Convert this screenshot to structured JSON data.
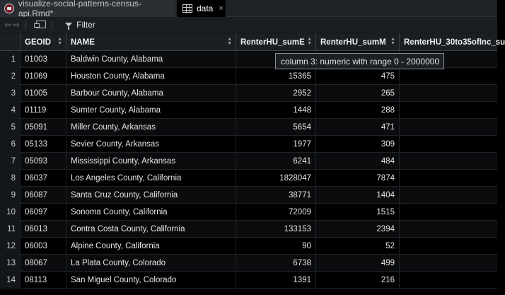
{
  "tabs": [
    {
      "label": "visualize-social-patterns-census-api.Rmd*",
      "icon": "rmd-file-icon",
      "active": false
    },
    {
      "label": "data",
      "icon": "data-grid-icon",
      "active": true,
      "close": "×"
    }
  ],
  "toolbar": {
    "back": "⇦",
    "forward": "⇨",
    "filter_label": "Filter"
  },
  "columns": [
    "",
    "GEOID",
    "NAME",
    "RenterHU_sumE",
    "RenterHU_sumM",
    "RenterHU_30to35ofInc_su"
  ],
  "rows": [
    {
      "n": "1",
      "geoid": "01003",
      "name": "Baldwin County, Alabama",
      "sumE": "",
      "sumM": ""
    },
    {
      "n": "2",
      "geoid": "01069",
      "name": "Houston County, Alabama",
      "sumE": "15365",
      "sumM": "475"
    },
    {
      "n": "3",
      "geoid": "01005",
      "name": "Barbour County, Alabama",
      "sumE": "2952",
      "sumM": "265"
    },
    {
      "n": "4",
      "geoid": "01119",
      "name": "Sumter County, Alabama",
      "sumE": "1448",
      "sumM": "288"
    },
    {
      "n": "5",
      "geoid": "05091",
      "name": "Miller County, Arkansas",
      "sumE": "5654",
      "sumM": "471"
    },
    {
      "n": "6",
      "geoid": "05133",
      "name": "Sevier County, Arkansas",
      "sumE": "1977",
      "sumM": "309"
    },
    {
      "n": "7",
      "geoid": "05093",
      "name": "Mississippi County, Arkansas",
      "sumE": "6241",
      "sumM": "484"
    },
    {
      "n": "8",
      "geoid": "06037",
      "name": "Los Angeles County, California",
      "sumE": "1828047",
      "sumM": "7874"
    },
    {
      "n": "9",
      "geoid": "06087",
      "name": "Santa Cruz County, California",
      "sumE": "38771",
      "sumM": "1404"
    },
    {
      "n": "10",
      "geoid": "06097",
      "name": "Sonoma County, California",
      "sumE": "72009",
      "sumM": "1515"
    },
    {
      "n": "11",
      "geoid": "06013",
      "name": "Contra Costa County, California",
      "sumE": "133153",
      "sumM": "2394"
    },
    {
      "n": "12",
      "geoid": "06003",
      "name": "Alpine County, California",
      "sumE": "90",
      "sumM": "52"
    },
    {
      "n": "13",
      "geoid": "08067",
      "name": "La Plata County, Colorado",
      "sumE": "6738",
      "sumM": "499"
    },
    {
      "n": "14",
      "geoid": "08113",
      "name": "San Miguel County, Colorado",
      "sumE": "1391",
      "sumM": "216"
    }
  ],
  "tooltip": "column 3: numeric with range 0 - 2000000",
  "colors": {
    "background": "#000000",
    "header": "#1b1e22",
    "tooltip_border": "#8a8f95"
  }
}
